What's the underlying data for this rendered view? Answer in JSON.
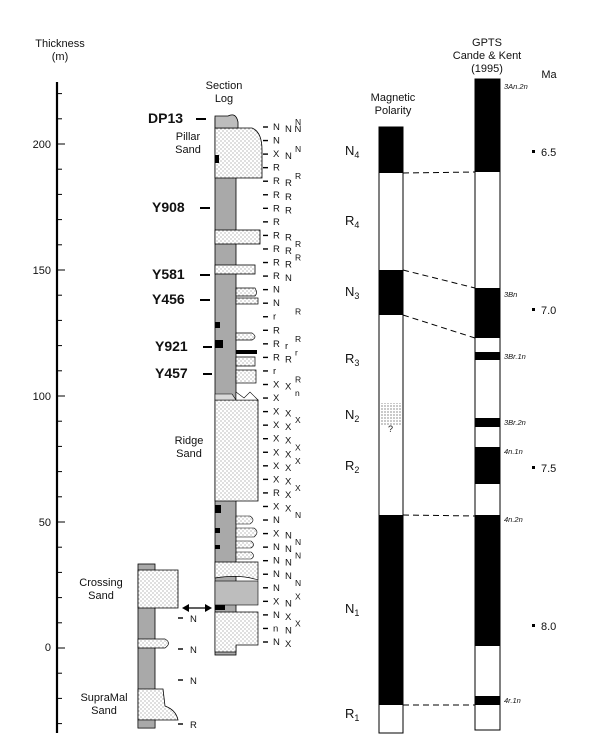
{
  "thickness_axis": {
    "title": "Thickness",
    "unit": "(m)",
    "ticks": [
      "200",
      "150",
      "100",
      "50",
      "0"
    ]
  },
  "section_log": {
    "title_line1": "Section",
    "title_line2": "Log"
  },
  "sites": [
    "DP13",
    "Y908",
    "Y581",
    "Y456",
    "Y921",
    "Y457"
  ],
  "units": {
    "pillar": [
      "Pillar",
      "Sand"
    ],
    "ridge": [
      "Ridge",
      "Sand"
    ],
    "crossing": [
      "Crossing",
      "Sand"
    ],
    "supramal": [
      "SupraMal",
      "Sand"
    ]
  },
  "magnetic_polarity": {
    "title_line1": "Magnetic",
    "title_line2": "Polarity",
    "zones": [
      {
        "main": "N",
        "sub": "4"
      },
      {
        "main": "R",
        "sub": "4"
      },
      {
        "main": "N",
        "sub": "3"
      },
      {
        "main": "R",
        "sub": "3"
      },
      {
        "main": "N",
        "sub": "2"
      },
      {
        "main": "R",
        "sub": "2"
      },
      {
        "main": "N",
        "sub": "1"
      },
      {
        "main": "R",
        "sub": "1"
      }
    ],
    "question_mark": "?"
  },
  "gpts": {
    "title_line1": "GPTS",
    "title_line2": "Cande & Kent",
    "title_line3": "(1995)",
    "chrons": [
      "3An.2n",
      "3Bn",
      "3Br.1n",
      "3Br.2n",
      "4n.1n",
      "4n.2n",
      "4r.1n"
    ]
  },
  "age_axis": {
    "title": "Ma",
    "ticks": [
      "6.5",
      "7.0",
      "7.5",
      "8.0"
    ]
  },
  "polarity_column": [
    {
      "t": "N",
      "s": "N N",
      "sup": "N"
    },
    {
      "t": "N",
      "s": ""
    },
    {
      "t": "X",
      "s": "N",
      "sup": "N"
    },
    {
      "t": "R",
      "s": ""
    },
    {
      "t": "R",
      "s": "R",
      "sup": "R"
    },
    {
      "t": "R",
      "s": "R",
      "sup": ""
    },
    {
      "t": "R",
      "s": "R",
      "sup": ""
    },
    {
      "t": "R",
      "s": ""
    },
    {
      "t": "R",
      "s": "R",
      "sup": ""
    },
    {
      "t": "R",
      "s": "R",
      "sup": "R"
    },
    {
      "t": "R",
      "s": "R",
      "sup": "R"
    },
    {
      "t": "R",
      "s": "N",
      "sup": ""
    },
    {
      "t": "N",
      "s": ""
    },
    {
      "t": "N",
      "s": ""
    },
    {
      "t": "r",
      "s": "",
      "sup": "R"
    },
    {
      "t": "R",
      "s": ""
    },
    {
      "t": "R",
      "s": "r",
      "sup": "R"
    },
    {
      "t": "R",
      "s": "R",
      "sup": "r"
    },
    {
      "t": "r",
      "s": ""
    },
    {
      "t": "X",
      "s": "X",
      "sup": "R"
    },
    {
      "t": "X",
      "s": "",
      "sup": "n"
    },
    {
      "t": "X",
      "s": "X"
    },
    {
      "t": "X",
      "s": "X",
      "sup": "X"
    },
    {
      "t": "X",
      "s": "X",
      "sup": ""
    },
    {
      "t": "X",
      "s": "X",
      "sup": "X"
    },
    {
      "t": "X",
      "s": "X",
      "sup": "X"
    },
    {
      "t": "X",
      "s": "X",
      "sup": ""
    },
    {
      "t": "R",
      "s": "X",
      "sup": "X"
    },
    {
      "t": "X",
      "s": "X",
      "sup": ""
    },
    {
      "t": "N",
      "s": "",
      "sup": "N"
    },
    {
      "t": "X",
      "s": "N"
    },
    {
      "t": "N",
      "s": "N",
      "sup": "N"
    },
    {
      "t": "N",
      "s": "N",
      "sup": "N"
    },
    {
      "t": "N",
      "s": "N"
    },
    {
      "t": "N",
      "s": "",
      "sup": "N"
    },
    {
      "t": "X",
      "s": "N",
      "sup": "X"
    },
    {
      "t": "N",
      "s": "X",
      "sup": ""
    },
    {
      "t": "n",
      "s": "N",
      "sup": "X"
    },
    {
      "t": "N",
      "s": "X"
    }
  ],
  "crossing_polarity": [
    "N",
    "N",
    "N",
    "R"
  ]
}
